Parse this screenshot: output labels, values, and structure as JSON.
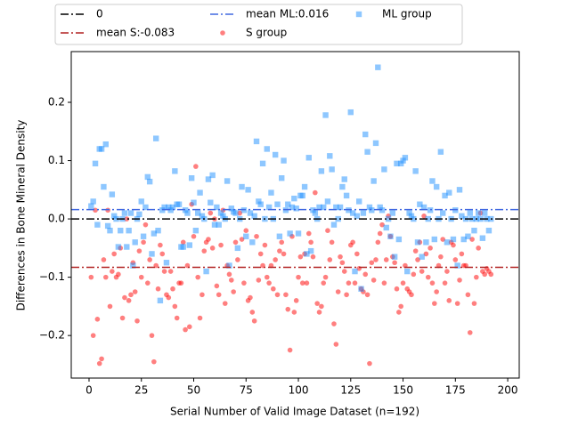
{
  "chart_data": {
    "type": "scatter",
    "xlabel": "Serial Number of Valid Image Dataset (n=192)",
    "ylabel": "Differences in Bone Mineral Density",
    "xlim": [
      -8.5,
      205.5
    ],
    "ylim": [
      -0.273,
      0.287
    ],
    "xticks": [
      0,
      25,
      50,
      75,
      100,
      125,
      150,
      175,
      200
    ],
    "yticks": [
      {
        "value": -0.2,
        "label": "−0.2"
      },
      {
        "value": -0.1,
        "label": "−0.1"
      },
      {
        "value": 0,
        "label": "0.0"
      },
      {
        "value": 0.1,
        "label": "0.1"
      },
      {
        "value": 0.2,
        "label": "0.2"
      }
    ],
    "hlines": [
      {
        "label": "0",
        "value": 0,
        "color": "#000000"
      },
      {
        "label": "mean S:-0.083",
        "value": -0.083,
        "color": "#b22222"
      },
      {
        "label": "mean ML:0.016",
        "value": 0.016,
        "color": "#4169e1"
      }
    ],
    "x": [
      1,
      2,
      3,
      4,
      5,
      6,
      7,
      8,
      9,
      10,
      11,
      12,
      13,
      14,
      15,
      16,
      17,
      18,
      19,
      20,
      21,
      22,
      23,
      24,
      25,
      26,
      27,
      28,
      29,
      30,
      31,
      32,
      33,
      34,
      35,
      36,
      37,
      38,
      39,
      40,
      41,
      42,
      43,
      44,
      45,
      46,
      47,
      48,
      49,
      50,
      51,
      52,
      53,
      54,
      55,
      56,
      57,
      58,
      59,
      60,
      61,
      62,
      63,
      64,
      65,
      66,
      67,
      68,
      69,
      70,
      71,
      72,
      73,
      74,
      75,
      76,
      77,
      78,
      79,
      80,
      81,
      82,
      83,
      84,
      85,
      86,
      87,
      88,
      89,
      90,
      91,
      92,
      93,
      94,
      95,
      96,
      97,
      98,
      99,
      100,
      101,
      102,
      103,
      104,
      105,
      106,
      107,
      108,
      109,
      110,
      111,
      112,
      113,
      114,
      115,
      116,
      117,
      118,
      119,
      120,
      121,
      122,
      123,
      124,
      125,
      126,
      127,
      128,
      129,
      130,
      131,
      132,
      133,
      134,
      135,
      136,
      137,
      138,
      139,
      140,
      141,
      142,
      143,
      144,
      145,
      146,
      147,
      148,
      149,
      150,
      151,
      152,
      153,
      154,
      155,
      156,
      157,
      158,
      159,
      160,
      161,
      162,
      163,
      164,
      165,
      166,
      167,
      168,
      169,
      170,
      171,
      172,
      173,
      174,
      175,
      176,
      177,
      178,
      179,
      180,
      181,
      182,
      183,
      184,
      185,
      186,
      187,
      188,
      189,
      190,
      191,
      192
    ],
    "series": [
      {
        "name": "S group",
        "color": "#ff0000",
        "marker": "circle",
        "values": [
          -0.1,
          -0.2,
          0.015,
          -0.172,
          -0.248,
          -0.24,
          -0.07,
          -0.1,
          0.015,
          -0.15,
          -0.09,
          -0.06,
          -0.1,
          -0.095,
          -0.05,
          -0.17,
          -0.135,
          0.0,
          -0.14,
          -0.13,
          -0.075,
          -0.125,
          -0.175,
          -0.055,
          -0.1,
          -0.04,
          -0.01,
          -0.11,
          -0.07,
          -0.2,
          -0.245,
          -0.08,
          -0.12,
          -0.045,
          -0.06,
          -0.09,
          -0.13,
          -0.135,
          -0.09,
          -0.12,
          -0.15,
          -0.17,
          -0.11,
          -0.11,
          -0.04,
          -0.19,
          -0.08,
          -0.185,
          0.025,
          -0.03,
          0.09,
          -0.1,
          -0.17,
          -0.13,
          -0.055,
          -0.04,
          -0.035,
          0.01,
          -0.05,
          0.0,
          -0.115,
          -0.13,
          -0.045,
          0.015,
          -0.145,
          -0.08,
          -0.095,
          -0.105,
          -0.125,
          -0.04,
          -0.07,
          0.01,
          -0.035,
          -0.11,
          -0.02,
          -0.14,
          -0.135,
          -0.16,
          -0.175,
          -0.03,
          -0.105,
          -0.06,
          -0.08,
          -0.045,
          -0.1,
          -0.11,
          -0.08,
          -0.12,
          -0.07,
          -0.13,
          -0.055,
          -0.04,
          -0.06,
          -0.13,
          -0.155,
          -0.225,
          -0.03,
          -0.16,
          -0.14,
          -0.1,
          -0.065,
          -0.11,
          -0.06,
          -0.11,
          -0.025,
          -0.04,
          -0.065,
          0.045,
          -0.145,
          -0.16,
          -0.15,
          -0.11,
          -0.1,
          -0.02,
          -0.07,
          -0.04,
          -0.18,
          -0.215,
          -0.125,
          -0.065,
          -0.075,
          -0.09,
          -0.13,
          -0.11,
          -0.045,
          -0.04,
          -0.11,
          -0.06,
          -0.085,
          -0.12,
          -0.125,
          -0.095,
          -0.13,
          -0.248,
          -0.075,
          -0.105,
          -0.07,
          -0.04,
          -0.025,
          -0.01,
          -0.11,
          -0.07,
          0.005,
          -0.03,
          -0.065,
          -0.075,
          -0.12,
          -0.16,
          -0.15,
          -0.11,
          -0.08,
          -0.12,
          -0.125,
          -0.13,
          -0.095,
          -0.055,
          -0.07,
          -0.04,
          -0.09,
          0.005,
          -0.06,
          -0.1,
          -0.05,
          -0.11,
          -0.145,
          -0.125,
          -0.08,
          -0.065,
          -0.035,
          -0.11,
          -0.09,
          -0.14,
          -0.04,
          -0.045,
          -0.07,
          -0.145,
          -0.105,
          -0.06,
          -0.08,
          -0.08,
          -0.13,
          -0.195,
          -0.035,
          -0.145,
          -0.1,
          -0.05,
          0.01,
          -0.09,
          -0.095,
          -0.085,
          -0.09,
          -0.095
        ]
      },
      {
        "name": "ML group",
        "color": "#1e90ff",
        "marker": "square",
        "values": [
          0.022,
          0.03,
          0.095,
          -0.01,
          0.12,
          0.12,
          0.055,
          0.128,
          -0.012,
          -0.02,
          0.042,
          0.005,
          0.0,
          -0.048,
          -0.02,
          0.0,
          0.01,
          -0.048,
          -0.02,
          0.01,
          -0.08,
          -0.04,
          0.0,
          0.008,
          0.03,
          -0.03,
          0.02,
          0.072,
          0.064,
          -0.06,
          -0.025,
          0.138,
          -0.02,
          -0.14,
          0.015,
          0.02,
          -0.075,
          0.02,
          0.015,
          0.02,
          0.082,
          0.025,
          0.025,
          -0.048,
          -0.048,
          0.015,
          0.01,
          -0.045,
          0.07,
          0.028,
          -0.02,
          0.01,
          0.045,
          0.005,
          0.0,
          -0.09,
          0.068,
          0.028,
          0.075,
          -0.01,
          0.02,
          -0.01,
          0.01,
          0.005,
          0.0,
          0.065,
          -0.08,
          0.018,
          0.012,
          0.01,
          -0.05,
          0.0,
          0.055,
          0.015,
          -0.03,
          0.05,
          0.01,
          -0.04,
          0.005,
          0.133,
          0.03,
          0.025,
          0.095,
          0.0,
          0.12,
          0.02,
          0.045,
          0.0,
          0.11,
          0.025,
          -0.03,
          0.07,
          0.1,
          0.015,
          0.025,
          -0.025,
          0.02,
          0.035,
          0.018,
          -0.025,
          0.04,
          0.04,
          0.055,
          -0.06,
          0.105,
          -0.055,
          0.015,
          0.01,
          0.0,
          0.02,
          0.082,
          0.02,
          0.178,
          0.03,
          0.108,
          0.085,
          -0.01,
          0.02,
          0.0,
          0.02,
          0.055,
          0.068,
          0.04,
          0.015,
          0.183,
          0.01,
          -0.09,
          0.005,
          0.03,
          -0.12,
          0.01,
          0.145,
          0.115,
          0.02,
          0.015,
          0.065,
          0.13,
          0.26,
          0.02,
          0.015,
          0.085,
          -0.015,
          0.0,
          -0.03,
          0.01,
          -0.065,
          0.095,
          -0.035,
          0.095,
          0.1,
          0.105,
          -0.09,
          0.01,
          0.005,
          0.0,
          0.082,
          -0.04,
          0.025,
          -0.065,
          0.02,
          -0.04,
          0.0,
          0.015,
          0.065,
          -0.035,
          0.055,
          0.0,
          0.115,
          0.01,
          0.04,
          -0.04,
          0.045,
          0.0,
          -0.035,
          0.015,
          -0.08,
          0.05,
          0.005,
          -0.035,
          0.0,
          -0.03,
          0.01,
          0.0,
          -0.02,
          0.0,
          0.01,
          0.0,
          -0.033,
          0.01,
          0.0,
          -0.02,
          0.0
        ]
      }
    ]
  }
}
